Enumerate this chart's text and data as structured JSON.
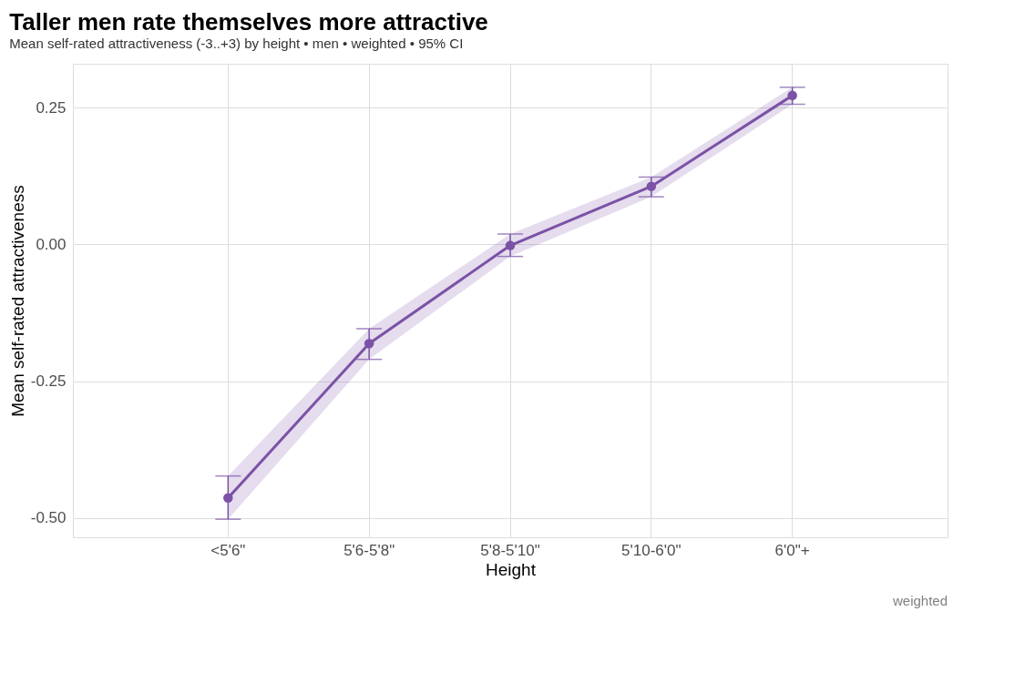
{
  "chart_data": {
    "type": "line",
    "title": "Taller men rate themselves more attractive",
    "subtitle": "Mean self-rated attractiveness (-3..+3) by height  •  men  •  weighted  •  95% CI",
    "xlabel": "Height",
    "ylabel": "Mean self-rated attractiveness",
    "categories": [
      "<5'6\"",
      "5'6-5'8\"",
      "5'8-5'10\"",
      "5'10-6'0\"",
      "6'0\"+"
    ],
    "series": [
      {
        "color": "#7b52a6",
        "values": [
          -0.463,
          -0.181,
          -0.002,
          0.106,
          0.272
        ],
        "errors": [
          [
            -0.502,
            -0.423
          ],
          [
            -0.21,
            -0.154
          ],
          [
            -0.022,
            0.019
          ],
          [
            0.087,
            0.123
          ],
          [
            0.256,
            0.287
          ]
        ],
        "lower": [
          -0.502,
          -0.21,
          -0.022,
          0.087,
          0.256
        ],
        "upper": [
          -0.423,
          -0.154,
          0.019,
          0.123,
          0.287
        ]
      }
    ],
    "ylim": [
      -0.535,
      0.33
    ],
    "yticks": [
      {
        "value": -0.5,
        "label": "-0.50"
      },
      {
        "value": -0.25,
        "label": "-0.25"
      },
      {
        "value": 0,
        "label": "0.00"
      },
      {
        "value": 0.25,
        "label": "0.25"
      }
    ],
    "grid": true,
    "marker": "circle",
    "line_style": "solid",
    "legend": false,
    "annotations": [
      "weighted"
    ]
  }
}
